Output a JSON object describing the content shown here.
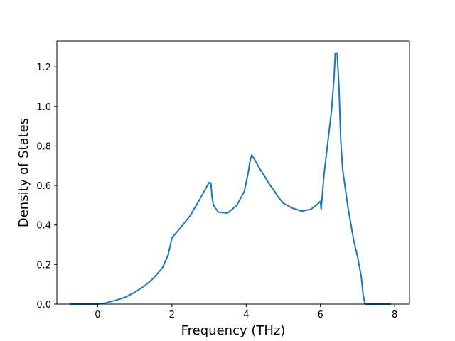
{
  "chart_data": {
    "type": "line",
    "title": "",
    "xlabel": "Frequency (THz)",
    "ylabel": "Density of States",
    "xlim": [
      -1.1,
      8.4
    ],
    "ylim": [
      0.0,
      1.33
    ],
    "xticks": [
      0,
      2,
      4,
      6,
      8
    ],
    "xtick_labels": [
      "0",
      "2",
      "4",
      "6",
      "8"
    ],
    "yticks": [
      0.0,
      0.2,
      0.4,
      0.6,
      0.8,
      1.0,
      1.2
    ],
    "ytick_labels": [
      "0.0",
      "0.2",
      "0.4",
      "0.6",
      "0.8",
      "1.0",
      "1.2"
    ],
    "grid": false,
    "legend": "none",
    "line_color": "#1f77b4",
    "series": [
      {
        "x": [
          -0.75,
          0.0,
          0.2,
          0.3,
          0.5,
          0.75,
          1.0,
          1.25,
          1.5,
          1.75,
          1.9,
          2.0,
          2.25,
          2.5,
          2.75,
          3.0,
          3.05,
          3.08,
          3.12,
          3.25,
          3.5,
          3.75,
          3.95,
          4.05,
          4.1,
          4.15,
          4.2,
          4.35,
          4.5,
          4.65,
          4.75,
          4.85,
          5.0,
          5.25,
          5.5,
          5.75,
          5.95,
          6.0,
          6.02,
          6.05,
          6.1,
          6.2,
          6.3,
          6.37,
          6.4,
          6.45,
          6.5,
          6.55,
          6.6,
          6.75,
          6.9,
          7.0,
          7.1,
          7.15,
          7.2,
          7.25,
          7.5,
          7.9
        ],
        "y": [
          0.0,
          0.0,
          0.005,
          0.01,
          0.02,
          0.035,
          0.06,
          0.09,
          0.13,
          0.185,
          0.25,
          0.335,
          0.39,
          0.45,
          0.53,
          0.615,
          0.612,
          0.54,
          0.5,
          0.465,
          0.46,
          0.5,
          0.57,
          0.66,
          0.72,
          0.755,
          0.74,
          0.69,
          0.645,
          0.6,
          0.575,
          0.545,
          0.51,
          0.485,
          0.47,
          0.48,
          0.51,
          0.52,
          0.48,
          0.55,
          0.66,
          0.82,
          0.98,
          1.15,
          1.27,
          1.27,
          1.1,
          0.82,
          0.68,
          0.48,
          0.32,
          0.24,
          0.14,
          0.05,
          0.0,
          0.0,
          0.0,
          0.0
        ]
      }
    ]
  }
}
